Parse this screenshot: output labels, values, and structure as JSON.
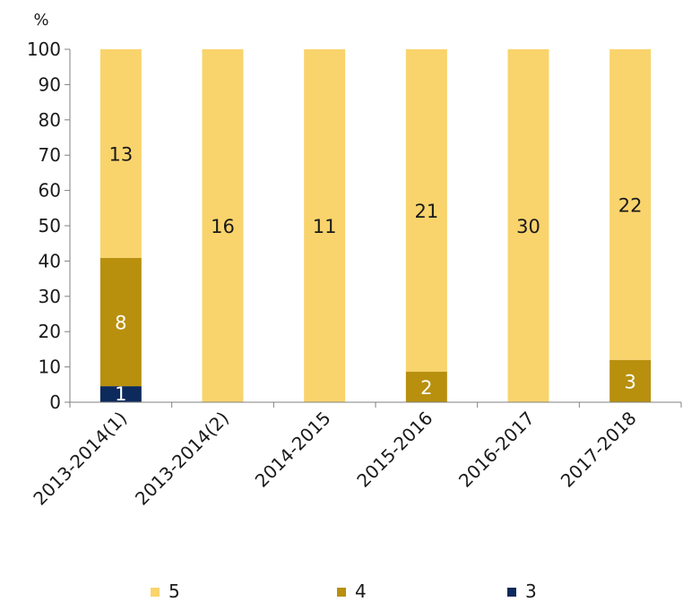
{
  "chart_data": {
    "type": "bar",
    "stacked": true,
    "percent": true,
    "title": "",
    "xlabel": "",
    "ylabel": "%",
    "ylim": [
      0,
      100
    ],
    "yticks": [
      0,
      10,
      20,
      30,
      40,
      50,
      60,
      70,
      80,
      90,
      100
    ],
    "categories": [
      "2013-2014(1)",
      "2013-2014(2)",
      "2014-2015",
      "2015-2016",
      "2016-2017",
      "2017-2018"
    ],
    "series": [
      {
        "name": "3",
        "color": "#0d2a5c",
        "values": [
          1,
          0,
          0,
          0,
          0,
          0
        ]
      },
      {
        "name": "4",
        "color": "#b8900e",
        "values": [
          8,
          0,
          0,
          2,
          0,
          3
        ]
      },
      {
        "name": "5",
        "color": "#f9d46c",
        "values": [
          13,
          16,
          11,
          21,
          30,
          22
        ]
      }
    ],
    "label_colors": {
      "3": "#ffffff",
      "4": "#ffffff",
      "5": "#1a1a1a"
    },
    "legend": {
      "position": "bottom",
      "order": [
        "5",
        "4",
        "3"
      ]
    },
    "grid": false
  }
}
